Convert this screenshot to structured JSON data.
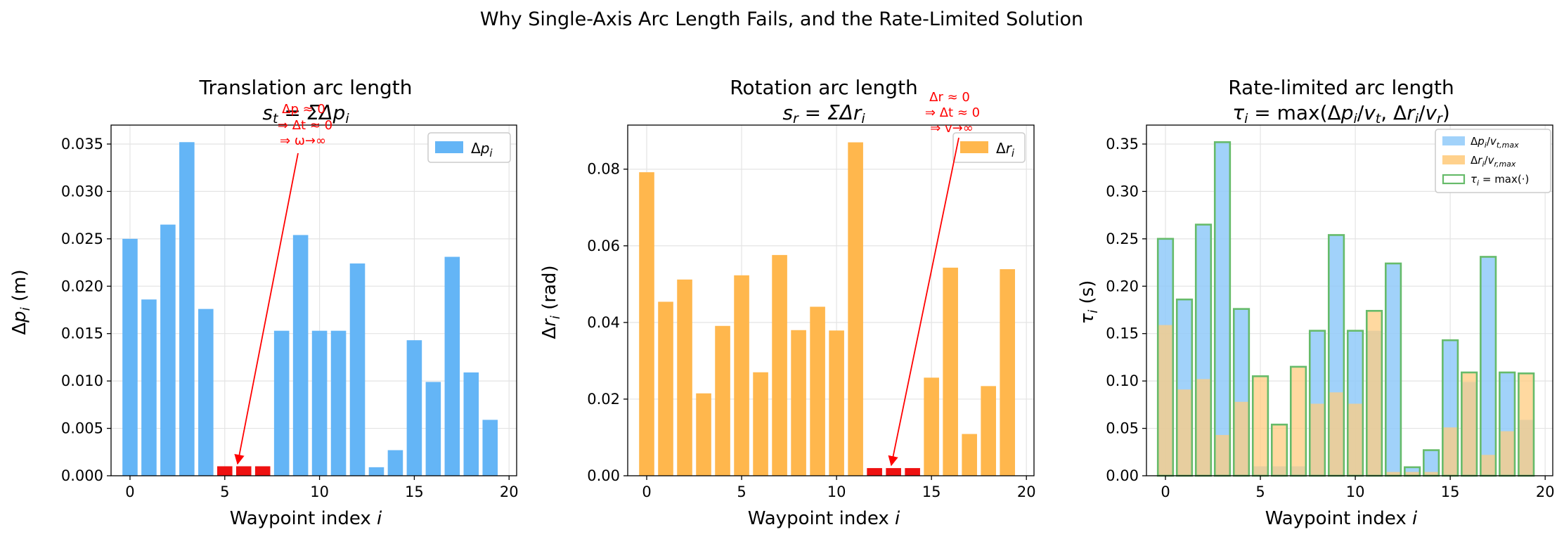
{
  "figure": {
    "title": "Why Single-Axis Arc Length Fails, and the Rate-Limited Solution"
  },
  "colors": {
    "translation": "#64b5f6",
    "rotation": "#ffb74d",
    "highlight": "#ee1111",
    "rate_trans": "#90caf9",
    "rate_rot": "#ffcc80",
    "rate_max_edge": "#66bb6a",
    "annotation": "#ff0000"
  },
  "chart_data": [
    {
      "type": "bar",
      "title_line1": "Translation arc length",
      "title_line2": "s_t = ΣΔp_i",
      "xlabel": "Waypoint index i",
      "ylabel": "Δp_i (m)",
      "x": [
        0,
        1,
        2,
        3,
        4,
        5,
        6,
        7,
        8,
        9,
        10,
        11,
        12,
        13,
        14,
        15,
        16,
        17,
        18,
        19
      ],
      "values": [
        0.025,
        0.0186,
        0.0265,
        0.0352,
        0.0176,
        0.001,
        0.001,
        0.001,
        0.0153,
        0.0254,
        0.0153,
        0.0153,
        0.0224,
        0.0009,
        0.0027,
        0.0143,
        0.0099,
        0.0231,
        0.0109,
        0.0059
      ],
      "highlighted_indices": [
        5,
        6,
        7
      ],
      "xlim": [
        -1,
        20.4
      ],
      "ylim": [
        0,
        0.037
      ],
      "xticks": [
        "0",
        "5",
        "10",
        "15",
        "20"
      ],
      "yticks": [
        "0.000",
        "0.005",
        "0.010",
        "0.015",
        "0.020",
        "0.025",
        "0.030",
        "0.035"
      ],
      "legend": "Δp_i",
      "legend_position": "upper right",
      "grid": true,
      "annotation": {
        "lines": [
          "Δp ≈ 0",
          "⇒ Δt ≈ 0",
          "⇒ ω→∞"
        ],
        "points_to_index": 6
      }
    },
    {
      "type": "bar",
      "title_line1": "Rotation arc length",
      "title_line2": "s_r = ΣΔr_i",
      "xlabel": "Waypoint index i",
      "ylabel": "Δr_i (rad)",
      "x": [
        0,
        1,
        2,
        3,
        4,
        5,
        6,
        7,
        8,
        9,
        10,
        11,
        12,
        13,
        14,
        15,
        16,
        17,
        18,
        19
      ],
      "values": [
        0.0792,
        0.0454,
        0.0512,
        0.0215,
        0.0391,
        0.0523,
        0.027,
        0.0576,
        0.038,
        0.0441,
        0.0379,
        0.087,
        0.002,
        0.002,
        0.002,
        0.0256,
        0.0543,
        0.0109,
        0.0234,
        0.0539
      ],
      "highlighted_indices": [
        12,
        13,
        14
      ],
      "xlim": [
        -1,
        20.4
      ],
      "ylim": [
        0,
        0.0915
      ],
      "xticks": [
        "0",
        "5",
        "10",
        "15",
        "20"
      ],
      "yticks": [
        "0.00",
        "0.02",
        "0.04",
        "0.06",
        "0.08"
      ],
      "legend": "Δr_i",
      "legend_position": "upper right",
      "grid": true,
      "annotation": {
        "lines": [
          "Δr ≈ 0",
          "⇒ Δt ≈ 0",
          "⇒ v→∞"
        ],
        "points_to_index": 13
      }
    },
    {
      "type": "bar",
      "title_line1": "Rate-limited arc length",
      "title_line2": "τ_i = max(Δp_i/v_t, Δr_i/v_r)",
      "xlabel": "Waypoint index i",
      "ylabel": "τ_i (s)",
      "x": [
        0,
        1,
        2,
        3,
        4,
        5,
        6,
        7,
        8,
        9,
        10,
        11,
        12,
        13,
        14,
        15,
        16,
        17,
        18,
        19
      ],
      "xlim": [
        -1,
        20.4
      ],
      "ylim": [
        0,
        0.37
      ],
      "xticks": [
        "0",
        "5",
        "10",
        "15",
        "20"
      ],
      "yticks": [
        "0.00",
        "0.05",
        "0.10",
        "0.15",
        "0.20",
        "0.25",
        "0.30",
        "0.35"
      ],
      "legend_position": "upper right",
      "grid": true,
      "series": [
        {
          "name": "Δp_i/v_t,max",
          "values": [
            0.25,
            0.186,
            0.265,
            0.352,
            0.176,
            0.01,
            0.01,
            0.01,
            0.153,
            0.254,
            0.153,
            0.153,
            0.224,
            0.009,
            0.027,
            0.143,
            0.099,
            0.231,
            0.109,
            0.059
          ]
        },
        {
          "name": "Δr_i/v_r,max",
          "values": [
            0.159,
            0.091,
            0.102,
            0.043,
            0.078,
            0.105,
            0.054,
            0.115,
            0.076,
            0.088,
            0.076,
            0.174,
            0.004,
            0.004,
            0.004,
            0.051,
            0.109,
            0.022,
            0.047,
            0.108
          ]
        },
        {
          "name": "τ_i = max(·)",
          "values": [
            0.25,
            0.186,
            0.265,
            0.352,
            0.176,
            0.105,
            0.054,
            0.115,
            0.153,
            0.254,
            0.153,
            0.174,
            0.224,
            0.009,
            0.027,
            0.143,
            0.109,
            0.231,
            0.109,
            0.108
          ]
        }
      ]
    }
  ]
}
